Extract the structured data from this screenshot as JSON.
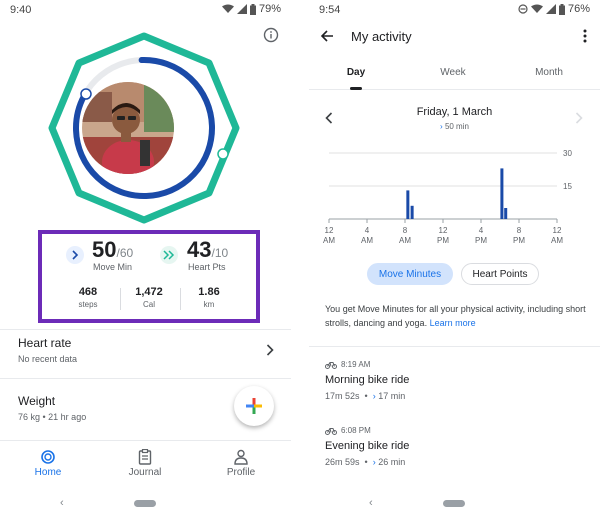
{
  "left_phone": {
    "status": {
      "time": "9:40",
      "battery": "79%"
    },
    "stats": {
      "move_min": {
        "value": "50",
        "goal": "/60",
        "label": "Move Min"
      },
      "heart_pts": {
        "value": "43",
        "goal": "/10",
        "label": "Heart Pts"
      },
      "steps": {
        "value": "468",
        "label": "steps"
      },
      "cal": {
        "value": "1,472",
        "label": "Cal"
      },
      "km": {
        "value": "1.86",
        "label": "km"
      }
    },
    "heart_rate": {
      "title": "Heart rate",
      "subtitle": "No recent data"
    },
    "weight": {
      "title": "Weight",
      "subtitle": "76 kg • 21 hr ago"
    },
    "nav": {
      "home": "Home",
      "journal": "Journal",
      "profile": "Profile"
    },
    "system_nav": {
      "back": "‹"
    }
  },
  "right_phone": {
    "status": {
      "time": "9:54",
      "battery": "76%"
    },
    "title": "My activity",
    "tabs": [
      "Day",
      "Week",
      "Month"
    ],
    "date": {
      "title": "Friday, 1 March",
      "subtitle": "50 min"
    },
    "toggles": {
      "move_minutes": "Move Minutes",
      "heart_points": "Heart Points"
    },
    "description": {
      "text": "You get Move Minutes for all your physical activity, including short strolls, dancing and yoga.",
      "link": "Learn more"
    },
    "activities": [
      {
        "time": "8:19 AM",
        "title": "Morning bike ride",
        "duration": "17m 52s",
        "move": "17 min"
      },
      {
        "time": "6:08 PM",
        "title": "Evening bike ride",
        "duration": "26m 59s",
        "move": "26 min"
      }
    ],
    "system_nav": {
      "back": "‹"
    },
    "colors": {
      "bar": "#1a4aa8",
      "accent": "#1a73e8"
    }
  },
  "chart_data": {
    "type": "bar",
    "x_tick_labels": [
      [
        "12",
        "AM"
      ],
      [
        "4",
        "AM"
      ],
      [
        "8",
        "AM"
      ],
      [
        "12",
        "PM"
      ],
      [
        "4",
        "PM"
      ],
      [
        "8",
        "PM"
      ],
      [
        "12",
        "AM"
      ]
    ],
    "y_ticks": [
      "30",
      "15"
    ],
    "ylim": [
      0,
      30
    ],
    "x_range_hours": [
      0,
      24
    ],
    "x": [
      8.3,
      8.75,
      18.2,
      18.6
    ],
    "values": [
      13,
      6,
      23,
      5
    ],
    "grid": true
  }
}
